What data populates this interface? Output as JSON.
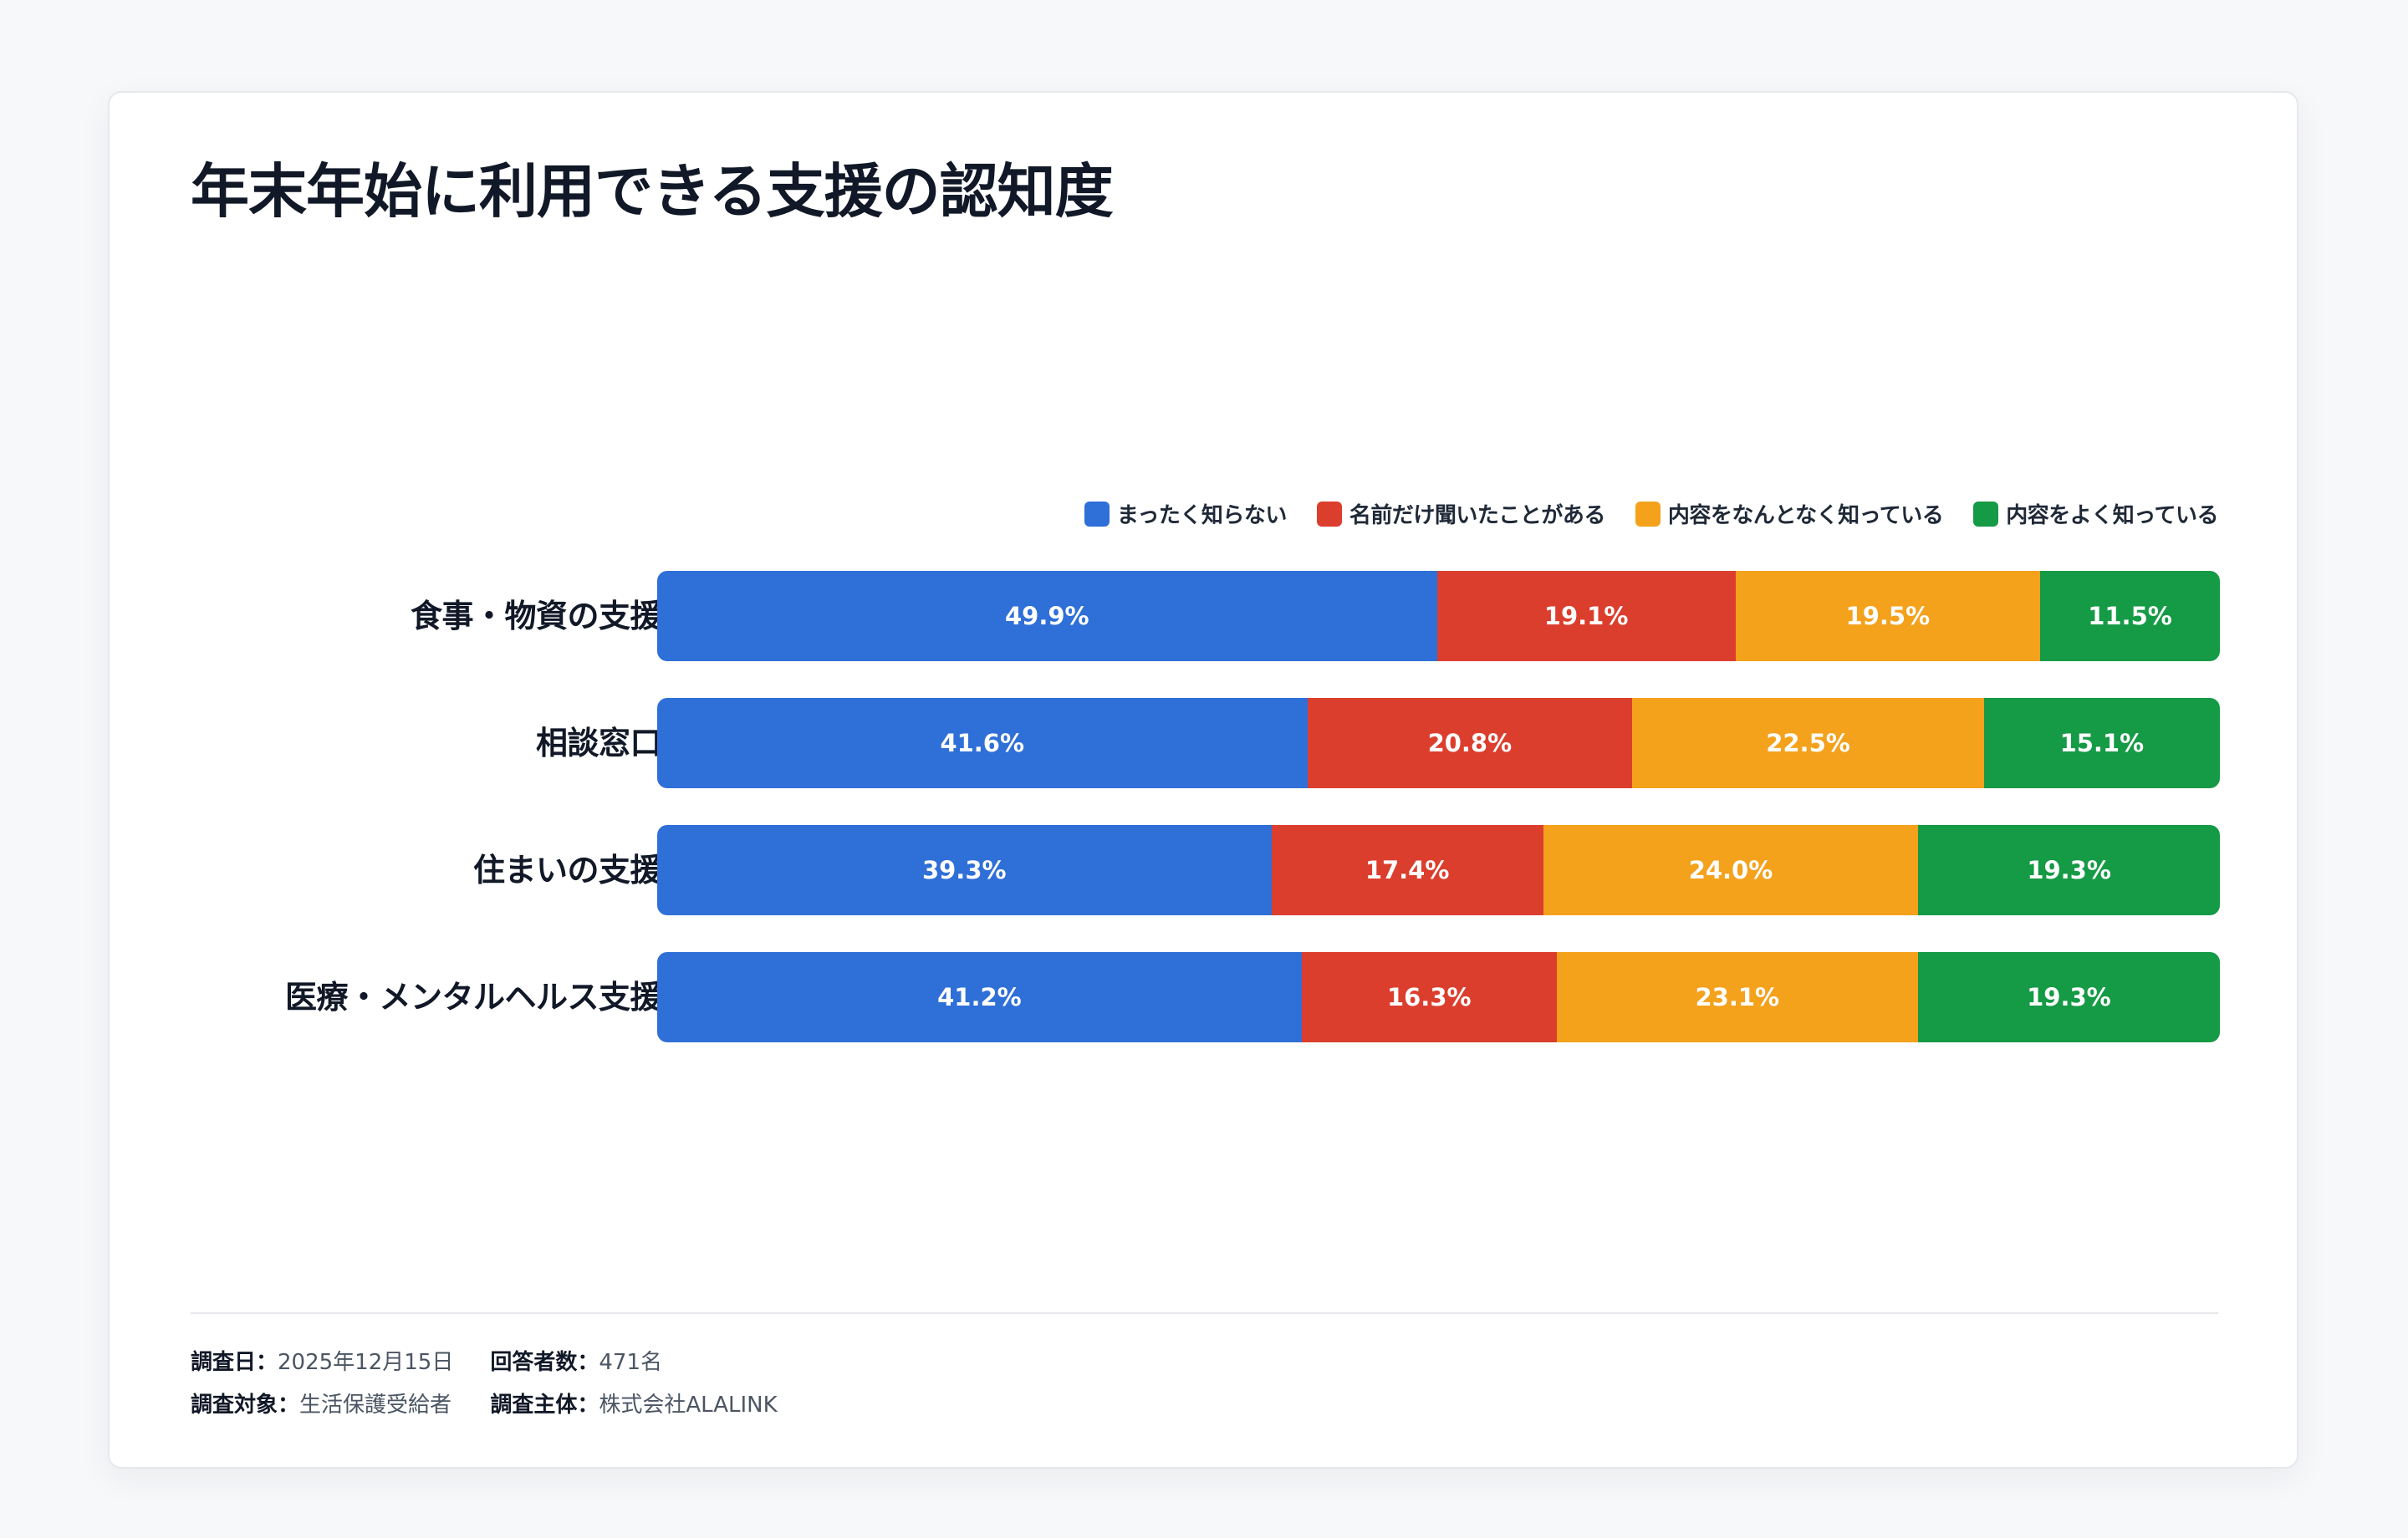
{
  "title": "年末年始に利用できる支援の認知度",
  "chart_data": {
    "type": "bar",
    "stacked": true,
    "orientation": "horizontal",
    "unit": "%",
    "categories": [
      "食事・物資の支援",
      "相談窓口",
      "住まいの支援",
      "医療・メンタルヘルス支援"
    ],
    "series": [
      {
        "name": "まったく知らない",
        "color": "#2f6fd8",
        "values": [
          49.9,
          41.6,
          39.3,
          41.2
        ],
        "labels": [
          "49.9%",
          "41.6%",
          "39.3%",
          "41.2%"
        ]
      },
      {
        "name": "名前だけ聞いたことがある",
        "color": "#dc3e2e",
        "values": [
          19.1,
          20.8,
          17.4,
          16.3
        ],
        "labels": [
          "19.1%",
          "20.8%",
          "17.4%",
          "16.3%"
        ]
      },
      {
        "name": "内容をなんとなく知っている",
        "color": "#f4a11c",
        "values": [
          19.5,
          22.5,
          24.0,
          23.1
        ],
        "labels": [
          "19.5%",
          "22.5%",
          "24.0%",
          "23.1%"
        ]
      },
      {
        "name": "内容をよく知っている",
        "color": "#159a45",
        "values": [
          11.5,
          15.1,
          19.3,
          19.3
        ],
        "labels": [
          "11.5%",
          "15.1%",
          "19.3%",
          "19.3%"
        ]
      }
    ],
    "legend_position": "top-right",
    "xlim": [
      0,
      100
    ],
    "grid": false
  },
  "footer": {
    "date_key": "調査日：",
    "date_value": "2025年12月15日",
    "respondents_key": "回答者数：",
    "respondents_value": "471名",
    "target_key": "調査対象：",
    "target_value": "生活保護受給者",
    "organizer_key": "調査主体：",
    "organizer_value": "株式会社ALALINK"
  }
}
